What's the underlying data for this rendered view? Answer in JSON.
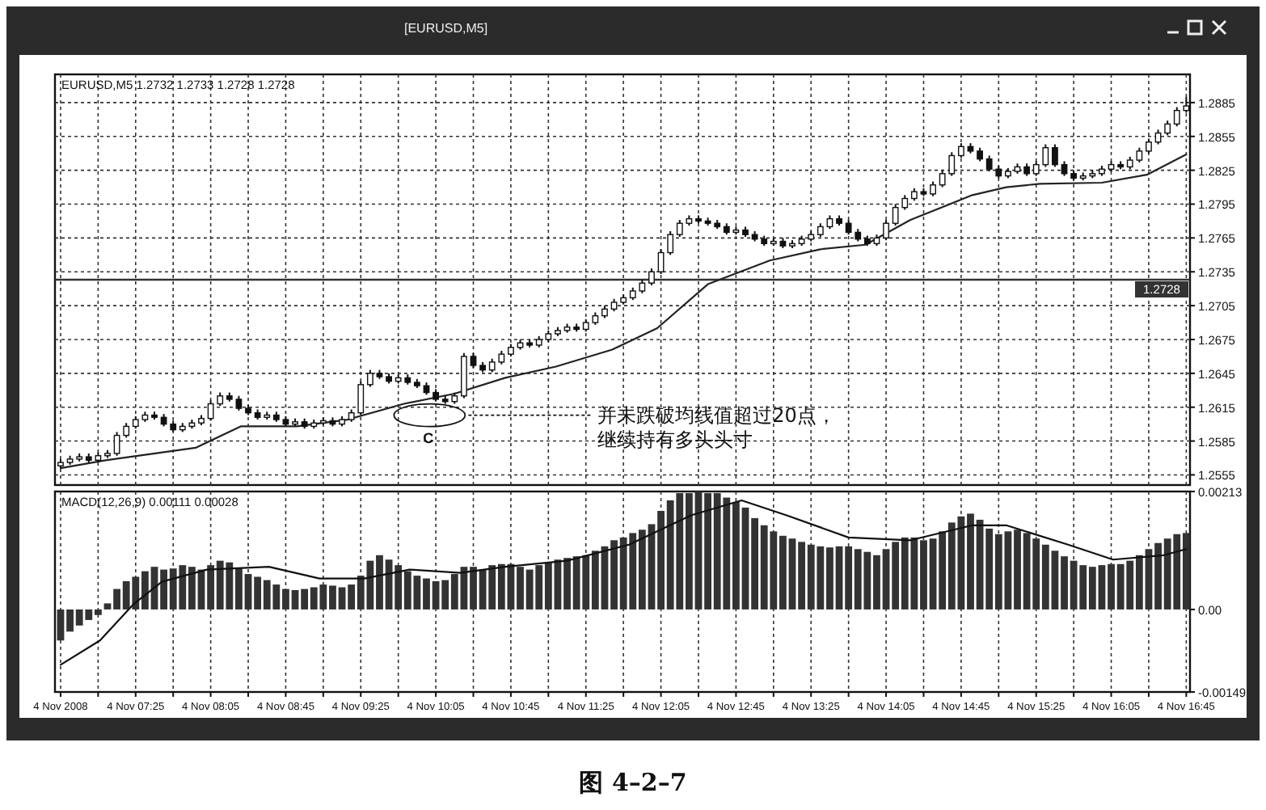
{
  "chart_data": [
    {
      "type": "candlestick",
      "title": "[EURUSD,M5]",
      "color": "#111111",
      "annotations": [
        "EURUSD,M5  1.2732 1.2733 1.2728 1.2728",
        "C",
        "并未跌破均线值超过20点，继续持有多头头寸"
      ],
      "x": [
        "2008-11-04T06:45",
        "2008-11-04T06:50",
        "2008-11-04T06:55",
        "2008-11-04T07:00",
        "2008-11-04T07:05",
        "2008-11-04T07:10",
        "2008-11-04T07:15",
        "2008-11-04T07:20",
        "2008-11-04T07:25",
        "2008-11-04T07:30",
        "2008-11-04T07:35",
        "2008-11-04T07:40",
        "2008-11-04T07:45",
        "2008-11-04T07:50",
        "2008-11-04T07:55",
        "2008-11-04T08:00",
        "2008-11-04T08:05",
        "2008-11-04T08:10",
        "2008-11-04T08:15",
        "2008-11-04T08:20",
        "2008-11-04T08:25",
        "2008-11-04T08:30",
        "2008-11-04T08:35",
        "2008-11-04T08:40",
        "2008-11-04T08:45",
        "2008-11-04T08:50",
        "2008-11-04T08:55",
        "2008-11-04T09:00",
        "2008-11-04T09:05",
        "2008-11-04T09:10",
        "2008-11-04T09:15",
        "2008-11-04T09:20",
        "2008-11-04T09:25",
        "2008-11-04T09:30",
        "2008-11-04T09:35",
        "2008-11-04T09:40",
        "2008-11-04T09:45",
        "2008-11-04T09:50",
        "2008-11-04T09:55",
        "2008-11-04T10:00",
        "2008-11-04T10:05",
        "2008-11-04T10:10",
        "2008-11-04T10:15",
        "2008-11-04T10:20",
        "2008-11-04T10:25",
        "2008-11-04T10:30",
        "2008-11-04T10:35",
        "2008-11-04T10:40",
        "2008-11-04T10:45",
        "2008-11-04T10:50",
        "2008-11-04T10:55",
        "2008-11-04T11:00",
        "2008-11-04T11:05",
        "2008-11-04T11:10",
        "2008-11-04T11:15",
        "2008-11-04T11:20",
        "2008-11-04T11:25",
        "2008-11-04T11:30",
        "2008-11-04T11:35",
        "2008-11-04T11:40",
        "2008-11-04T11:45",
        "2008-11-04T11:50",
        "2008-11-04T11:55",
        "2008-11-04T12:00",
        "2008-11-04T12:05",
        "2008-11-04T12:10",
        "2008-11-04T12:15",
        "2008-11-04T12:20",
        "2008-11-04T12:25",
        "2008-11-04T12:30",
        "2008-11-04T12:35",
        "2008-11-04T12:40",
        "2008-11-04T12:45",
        "2008-11-04T12:50",
        "2008-11-04T12:55",
        "2008-11-04T13:00",
        "2008-11-04T13:05",
        "2008-11-04T13:10",
        "2008-11-04T13:15",
        "2008-11-04T13:20",
        "2008-11-04T13:25",
        "2008-11-04T13:30",
        "2008-11-04T13:35",
        "2008-11-04T13:40",
        "2008-11-04T13:45",
        "2008-11-04T13:50",
        "2008-11-04T13:55",
        "2008-11-04T14:00",
        "2008-11-04T14:05",
        "2008-11-04T14:10",
        "2008-11-04T14:15",
        "2008-11-04T14:20",
        "2008-11-04T14:25",
        "2008-11-04T14:30",
        "2008-11-04T14:35",
        "2008-11-04T14:40",
        "2008-11-04T14:45",
        "2008-11-04T14:50",
        "2008-11-04T14:55",
        "2008-11-04T15:00",
        "2008-11-04T15:05",
        "2008-11-04T15:10",
        "2008-11-04T15:15",
        "2008-11-04T15:20",
        "2008-11-04T15:25",
        "2008-11-04T15:30",
        "2008-11-04T15:35",
        "2008-11-04T15:40",
        "2008-11-04T15:45",
        "2008-11-04T15:50",
        "2008-11-04T15:55",
        "2008-11-04T16:00",
        "2008-11-04T16:05",
        "2008-11-04T16:10",
        "2008-11-04T16:15",
        "2008-11-04T16:20",
        "2008-11-04T16:25",
        "2008-11-04T16:30",
        "2008-11-04T16:35",
        "2008-11-04T16:40",
        "2008-11-04T16:45"
      ],
      "ohlc": [
        [
          1.2563,
          1.2569,
          1.2561,
          1.2566
        ],
        [
          1.2566,
          1.2572,
          1.2564,
          1.2569
        ],
        [
          1.2569,
          1.2574,
          1.2567,
          1.2571
        ],
        [
          1.2571,
          1.2574,
          1.2566,
          1.2568
        ],
        [
          1.2568,
          1.2575,
          1.2566,
          1.2572
        ],
        [
          1.2572,
          1.2577,
          1.257,
          1.2574
        ],
        [
          1.2574,
          1.2593,
          1.2572,
          1.259
        ],
        [
          1.259,
          1.2601,
          1.2588,
          1.2598
        ],
        [
          1.2598,
          1.2607,
          1.2596,
          1.2604
        ],
        [
          1.2604,
          1.2611,
          1.2602,
          1.2608
        ],
        [
          1.2608,
          1.2611,
          1.2604,
          1.2606
        ],
        [
          1.2606,
          1.2609,
          1.2598,
          1.26
        ],
        [
          1.26,
          1.2603,
          1.2593,
          1.2595
        ],
        [
          1.2595,
          1.2601,
          1.2593,
          1.2598
        ],
        [
          1.2598,
          1.2604,
          1.2596,
          1.2601
        ],
        [
          1.2601,
          1.2608,
          1.2599,
          1.2605
        ],
        [
          1.2605,
          1.2621,
          1.2603,
          1.2618
        ],
        [
          1.2618,
          1.2628,
          1.2616,
          1.2625
        ],
        [
          1.2625,
          1.2628,
          1.262,
          1.2622
        ],
        [
          1.2622,
          1.2625,
          1.2612,
          1.2614
        ],
        [
          1.2614,
          1.2617,
          1.2608,
          1.261
        ],
        [
          1.261,
          1.2613,
          1.2604,
          1.2606
        ],
        [
          1.2606,
          1.2611,
          1.2604,
          1.2608
        ],
        [
          1.2608,
          1.2611,
          1.2602,
          1.2604
        ],
        [
          1.2604,
          1.2607,
          1.2598,
          1.26
        ],
        [
          1.26,
          1.2605,
          1.2598,
          1.2602
        ],
        [
          1.2602,
          1.2605,
          1.2596,
          1.2598
        ],
        [
          1.2598,
          1.2604,
          1.2596,
          1.2601
        ],
        [
          1.2601,
          1.2606,
          1.2599,
          1.2603
        ],
        [
          1.2603,
          1.2606,
          1.2598,
          1.26
        ],
        [
          1.26,
          1.2607,
          1.2598,
          1.2604
        ],
        [
          1.2604,
          1.2613,
          1.2602,
          1.261
        ],
        [
          1.261,
          1.2638,
          1.2608,
          1.2635
        ],
        [
          1.2635,
          1.2648,
          1.2633,
          1.2645
        ],
        [
          1.2645,
          1.2648,
          1.264,
          1.2642
        ],
        [
          1.2642,
          1.2645,
          1.2636,
          1.2638
        ],
        [
          1.2638,
          1.2644,
          1.2636,
          1.2641
        ],
        [
          1.2641,
          1.2644,
          1.2635,
          1.2637
        ],
        [
          1.2637,
          1.264,
          1.2632,
          1.2634
        ],
        [
          1.2634,
          1.2637,
          1.2626,
          1.2628
        ],
        [
          1.2628,
          1.2631,
          1.262,
          1.2622
        ],
        [
          1.2622,
          1.2625,
          1.2618,
          1.262
        ],
        [
          1.262,
          1.2628,
          1.2618,
          1.2625
        ],
        [
          1.2625,
          1.2663,
          1.2623,
          1.266
        ],
        [
          1.266,
          1.2663,
          1.265,
          1.2652
        ],
        [
          1.2652,
          1.2655,
          1.2646,
          1.2648
        ],
        [
          1.2648,
          1.2658,
          1.2646,
          1.2655
        ],
        [
          1.2655,
          1.2665,
          1.2653,
          1.2662
        ],
        [
          1.2662,
          1.2671,
          1.266,
          1.2668
        ],
        [
          1.2668,
          1.2675,
          1.2666,
          1.2672
        ],
        [
          1.2672,
          1.2675,
          1.2668,
          1.267
        ],
        [
          1.267,
          1.2678,
          1.2668,
          1.2675
        ],
        [
          1.2675,
          1.2683,
          1.2673,
          1.268
        ],
        [
          1.268,
          1.2686,
          1.2678,
          1.2683
        ],
        [
          1.2683,
          1.2689,
          1.2681,
          1.2686
        ],
        [
          1.2686,
          1.2689,
          1.2682,
          1.2684
        ],
        [
          1.2684,
          1.2693,
          1.2682,
          1.269
        ],
        [
          1.269,
          1.2699,
          1.2688,
          1.2696
        ],
        [
          1.2696,
          1.2705,
          1.2694,
          1.2702
        ],
        [
          1.2702,
          1.2711,
          1.27,
          1.2708
        ],
        [
          1.2708,
          1.2715,
          1.2706,
          1.2712
        ],
        [
          1.2712,
          1.2721,
          1.271,
          1.2718
        ],
        [
          1.2718,
          1.2728,
          1.2716,
          1.2725
        ],
        [
          1.2725,
          1.2738,
          1.2723,
          1.2735
        ],
        [
          1.2735,
          1.2755,
          1.2733,
          1.2752
        ],
        [
          1.2752,
          1.2771,
          1.275,
          1.2768
        ],
        [
          1.2768,
          1.2781,
          1.2766,
          1.2778
        ],
        [
          1.2778,
          1.2785,
          1.2776,
          1.2782
        ],
        [
          1.2782,
          1.2785,
          1.2778,
          1.278
        ],
        [
          1.278,
          1.2783,
          1.2776,
          1.2778
        ],
        [
          1.2778,
          1.2781,
          1.2773,
          1.2775
        ],
        [
          1.2775,
          1.2778,
          1.2768,
          1.277
        ],
        [
          1.277,
          1.2775,
          1.2768,
          1.2772
        ],
        [
          1.2772,
          1.2775,
          1.2766,
          1.2768
        ],
        [
          1.2768,
          1.2771,
          1.2762,
          1.2764
        ],
        [
          1.2764,
          1.2767,
          1.2758,
          1.276
        ],
        [
          1.276,
          1.2765,
          1.2758,
          1.2762
        ],
        [
          1.2762,
          1.2765,
          1.2756,
          1.2758
        ],
        [
          1.2758,
          1.2763,
          1.2756,
          1.276
        ],
        [
          1.276,
          1.2767,
          1.2758,
          1.2764
        ],
        [
          1.2764,
          1.2771,
          1.2762,
          1.2768
        ],
        [
          1.2768,
          1.2778,
          1.2766,
          1.2775
        ],
        [
          1.2775,
          1.2785,
          1.2773,
          1.2782
        ],
        [
          1.2782,
          1.2785,
          1.2776,
          1.2778
        ],
        [
          1.2778,
          1.2781,
          1.2768,
          1.277
        ],
        [
          1.277,
          1.2773,
          1.2762,
          1.2764
        ],
        [
          1.2764,
          1.2767,
          1.2758,
          1.276
        ],
        [
          1.276,
          1.2768,
          1.2758,
          1.2765
        ],
        [
          1.2765,
          1.2781,
          1.2763,
          1.2778
        ],
        [
          1.2778,
          1.2795,
          1.2776,
          1.2792
        ],
        [
          1.2792,
          1.2803,
          1.279,
          1.28
        ],
        [
          1.28,
          1.2809,
          1.2798,
          1.2806
        ],
        [
          1.2806,
          1.2809,
          1.2802,
          1.2804
        ],
        [
          1.2804,
          1.2815,
          1.2802,
          1.2812
        ],
        [
          1.2812,
          1.2825,
          1.281,
          1.2822
        ],
        [
          1.2822,
          1.2841,
          1.282,
          1.2838
        ],
        [
          1.2838,
          1.2849,
          1.2836,
          1.2846
        ],
        [
          1.2846,
          1.2849,
          1.284,
          1.2842
        ],
        [
          1.2842,
          1.2845,
          1.2833,
          1.2835
        ],
        [
          1.2835,
          1.2838,
          1.2824,
          1.2826
        ],
        [
          1.2826,
          1.2829,
          1.2818,
          1.282
        ],
        [
          1.282,
          1.2827,
          1.2818,
          1.2824
        ],
        [
          1.2824,
          1.2831,
          1.2822,
          1.2828
        ],
        [
          1.2828,
          1.2831,
          1.282,
          1.2822
        ],
        [
          1.2822,
          1.2833,
          1.282,
          1.283
        ],
        [
          1.283,
          1.2848,
          1.2828,
          1.2845
        ],
        [
          1.2845,
          1.2848,
          1.2828,
          1.283
        ],
        [
          1.283,
          1.2833,
          1.282,
          1.2822
        ],
        [
          1.2822,
          1.2825,
          1.2816,
          1.2818
        ],
        [
          1.2818,
          1.2823,
          1.2816,
          1.282
        ],
        [
          1.282,
          1.2825,
          1.2818,
          1.2822
        ],
        [
          1.2822,
          1.2829,
          1.282,
          1.2826
        ],
        [
          1.2826,
          1.2833,
          1.2824,
          1.283
        ],
        [
          1.283,
          1.2833,
          1.2826,
          1.2828
        ],
        [
          1.2828,
          1.2837,
          1.2826,
          1.2834
        ],
        [
          1.2834,
          1.2845,
          1.2832,
          1.2842
        ],
        [
          1.2842,
          1.2853,
          1.284,
          1.285
        ],
        [
          1.285,
          1.2861,
          1.2848,
          1.2858
        ],
        [
          1.2858,
          1.2869,
          1.2856,
          1.2866
        ],
        [
          1.2866,
          1.2881,
          1.2864,
          1.2878
        ],
        [
          1.2878,
          1.289,
          1.2876,
          1.2882
        ]
      ],
      "series": [
        {
          "type": "line",
          "color": "#222222",
          "x": [
            "2008-11-04T06:45",
            "2008-11-04T07:09",
            "2008-11-04T07:57",
            "2008-11-04T08:21",
            "2008-11-04T08:51",
            "2008-11-04T09:18",
            "2008-11-04T09:48",
            "2008-11-04T10:15",
            "2008-11-04T10:42",
            "2008-11-04T11:09",
            "2008-11-04T11:39",
            "2008-11-04T12:03",
            "2008-11-04T12:30",
            "2008-11-04T13:03",
            "2008-11-04T13:30",
            "2008-11-04T13:54",
            "2008-11-04T14:18",
            "2008-11-04T14:51",
            "2008-11-04T15:09",
            "2008-11-04T15:27",
            "2008-11-04T16:00",
            "2008-11-04T16:24",
            "2008-11-04T16:45"
          ],
          "values": [
            1.2561,
            1.2568,
            1.2579,
            1.2598,
            1.2598,
            1.2604,
            1.2618,
            1.2627,
            1.2641,
            1.2651,
            1.2666,
            1.2685,
            1.2724,
            1.2745,
            1.2755,
            1.2759,
            1.2781,
            1.2803,
            1.281,
            1.2813,
            1.2814,
            1.2821,
            1.2839
          ]
        }
      ],
      "xlim": [
        "2008-11-04T06:42",
        "2008-11-04T16:47"
      ],
      "ylim": [
        1.2546,
        1.291
      ],
      "xticks": [
        {
          "value": "2008-11-04T06:45",
          "label": null
        },
        {
          "value": "2008-11-04T07:05",
          "label": null
        },
        {
          "value": "2008-11-04T07:25",
          "label": null
        },
        {
          "value": "2008-11-04T07:45",
          "label": null
        },
        {
          "value": "2008-11-04T08:05",
          "label": null
        },
        {
          "value": "2008-11-04T08:25",
          "label": null
        },
        {
          "value": "2008-11-04T08:45",
          "label": null
        },
        {
          "value": "2008-11-04T09:05",
          "label": null
        },
        {
          "value": "2008-11-04T09:25",
          "label": null
        },
        {
          "value": "2008-11-04T09:45",
          "label": null
        },
        {
          "value": "2008-11-04T10:05",
          "label": null
        },
        {
          "value": "2008-11-04T10:25",
          "label": null
        },
        {
          "value": "2008-11-04T10:45",
          "label": null
        },
        {
          "value": "2008-11-04T11:05",
          "label": null
        },
        {
          "value": "2008-11-04T11:25",
          "label": null
        },
        {
          "value": "2008-11-04T11:45",
          "label": null
        },
        {
          "value": "2008-11-04T12:05",
          "label": null
        },
        {
          "value": "2008-11-04T12:25",
          "label": null
        },
        {
          "value": "2008-11-04T12:45",
          "label": null
        },
        {
          "value": "2008-11-04T13:05",
          "label": null
        },
        {
          "value": "2008-11-04T13:25",
          "label": null
        },
        {
          "value": "2008-11-04T13:45",
          "label": null
        },
        {
          "value": "2008-11-04T14:05",
          "label": null
        },
        {
          "value": "2008-11-04T14:25",
          "label": null
        },
        {
          "value": "2008-11-04T14:45",
          "label": null
        },
        {
          "value": "2008-11-04T15:05",
          "label": null
        },
        {
          "value": "2008-11-04T15:25",
          "label": null
        },
        {
          "value": "2008-11-04T15:45",
          "label": null
        },
        {
          "value": "2008-11-04T16:05",
          "label": null
        },
        {
          "value": "2008-11-04T16:25",
          "label": null
        },
        {
          "value": "2008-11-04T16:45",
          "label": null
        }
      ],
      "yticks": [
        1.2555,
        1.2585,
        1.2615,
        1.2645,
        1.2675,
        1.2705,
        1.2735,
        1.2765,
        1.2795,
        1.2825,
        1.2855,
        1.2885
      ],
      "grid": true,
      "tick_labels": "y",
      "ref_lines": [
        {
          "axis": "y",
          "value": 1.2728,
          "label": "1.2728",
          "color": "#333333"
        }
      ]
    },
    {
      "type": "bar",
      "annotations": [
        "MACD(12,26,9) 0.00111 0.00028",
        "图 4–2–7"
      ],
      "x": [
        "2008-11-04T06:45",
        "2008-11-04T06:50",
        "2008-11-04T06:55",
        "2008-11-04T07:00",
        "2008-11-04T07:05",
        "2008-11-04T07:10",
        "2008-11-04T07:15",
        "2008-11-04T07:20",
        "2008-11-04T07:25",
        "2008-11-04T07:30",
        "2008-11-04T07:35",
        "2008-11-04T07:40",
        "2008-11-04T07:45",
        "2008-11-04T07:50",
        "2008-11-04T07:55",
        "2008-11-04T08:00",
        "2008-11-04T08:05",
        "2008-11-04T08:10",
        "2008-11-04T08:15",
        "2008-11-04T08:20",
        "2008-11-04T08:25",
        "2008-11-04T08:30",
        "2008-11-04T08:35",
        "2008-11-04T08:40",
        "2008-11-04T08:45",
        "2008-11-04T08:50",
        "2008-11-04T08:55",
        "2008-11-04T09:00",
        "2008-11-04T09:05",
        "2008-11-04T09:10",
        "2008-11-04T09:15",
        "2008-11-04T09:20",
        "2008-11-04T09:25",
        "2008-11-04T09:30",
        "2008-11-04T09:35",
        "2008-11-04T09:40",
        "2008-11-04T09:45",
        "2008-11-04T09:50",
        "2008-11-04T09:55",
        "2008-11-04T10:00",
        "2008-11-04T10:05",
        "2008-11-04T10:10",
        "2008-11-04T10:15",
        "2008-11-04T10:20",
        "2008-11-04T10:25",
        "2008-11-04T10:30",
        "2008-11-04T10:35",
        "2008-11-04T10:40",
        "2008-11-04T10:45",
        "2008-11-04T10:50",
        "2008-11-04T10:55",
        "2008-11-04T11:00",
        "2008-11-04T11:05",
        "2008-11-04T11:10",
        "2008-11-04T11:15",
        "2008-11-04T11:20",
        "2008-11-04T11:25",
        "2008-11-04T11:30",
        "2008-11-04T11:35",
        "2008-11-04T11:40",
        "2008-11-04T11:45",
        "2008-11-04T11:50",
        "2008-11-04T11:55",
        "2008-11-04T12:00",
        "2008-11-04T12:05",
        "2008-11-04T12:10",
        "2008-11-04T12:15",
        "2008-11-04T12:20",
        "2008-11-04T12:25",
        "2008-11-04T12:30",
        "2008-11-04T12:35",
        "2008-11-04T12:40",
        "2008-11-04T12:45",
        "2008-11-04T12:50",
        "2008-11-04T12:55",
        "2008-11-04T13:00",
        "2008-11-04T13:05",
        "2008-11-04T13:10",
        "2008-11-04T13:15",
        "2008-11-04T13:20",
        "2008-11-04T13:25",
        "2008-11-04T13:30",
        "2008-11-04T13:35",
        "2008-11-04T13:40",
        "2008-11-04T13:45",
        "2008-11-04T13:50",
        "2008-11-04T13:55",
        "2008-11-04T14:00",
        "2008-11-04T14:05",
        "2008-11-04T14:10",
        "2008-11-04T14:15",
        "2008-11-04T14:20",
        "2008-11-04T14:25",
        "2008-11-04T14:30",
        "2008-11-04T14:35",
        "2008-11-04T14:40",
        "2008-11-04T14:45",
        "2008-11-04T14:50",
        "2008-11-04T14:55",
        "2008-11-04T15:00",
        "2008-11-04T15:05",
        "2008-11-04T15:10",
        "2008-11-04T15:15",
        "2008-11-04T15:20",
        "2008-11-04T15:25",
        "2008-11-04T15:30",
        "2008-11-04T15:35",
        "2008-11-04T15:40",
        "2008-11-04T15:45",
        "2008-11-04T15:50",
        "2008-11-04T15:55",
        "2008-11-04T16:00",
        "2008-11-04T16:05",
        "2008-11-04T16:10",
        "2008-11-04T16:15",
        "2008-11-04T16:20",
        "2008-11-04T16:25",
        "2008-11-04T16:30",
        "2008-11-04T16:35",
        "2008-11-04T16:40",
        "2008-11-04T16:45"
      ],
      "series": [
        {
          "type": "bar",
          "color": "#333333",
          "values": [
            -0.00056,
            -0.0004,
            -0.00029,
            -0.00019,
            -0.0001,
            0.00011,
            0.00037,
            0.00051,
            0.00059,
            0.00069,
            0.00077,
            0.00072,
            0.00074,
            0.0008,
            0.00077,
            0.00072,
            0.0008,
            0.00088,
            0.00085,
            0.00074,
            0.00064,
            0.00059,
            0.00053,
            0.00045,
            0.00037,
            0.00035,
            0.00037,
            0.0004,
            0.00045,
            0.00043,
            0.0004,
            0.00045,
            0.00061,
            0.00088,
            0.00098,
            0.0009,
            0.0008,
            0.00069,
            0.00061,
            0.00056,
            0.00051,
            0.00053,
            0.00064,
            0.00077,
            0.00077,
            0.00072,
            0.0008,
            0.00082,
            0.00082,
            0.00077,
            0.00072,
            0.0008,
            0.00085,
            0.0009,
            0.00093,
            0.00096,
            0.00098,
            0.00106,
            0.00114,
            0.00125,
            0.0013,
            0.00138,
            0.00144,
            0.00154,
            0.00178,
            0.00197,
            0.0021,
            0.0021,
            0.00213,
            0.0021,
            0.0021,
            0.00202,
            0.00194,
            0.00184,
            0.00165,
            0.00152,
            0.00141,
            0.00133,
            0.00128,
            0.00122,
            0.00117,
            0.00114,
            0.00112,
            0.00114,
            0.00114,
            0.00109,
            0.00104,
            0.00098,
            0.00109,
            0.00122,
            0.0013,
            0.0013,
            0.00125,
            0.00128,
            0.00141,
            0.00157,
            0.00168,
            0.00173,
            0.00162,
            0.00146,
            0.00136,
            0.00141,
            0.00144,
            0.00138,
            0.00128,
            0.00117,
            0.00106,
            0.00096,
            0.00088,
            0.0008,
            0.00077,
            0.0008,
            0.00082,
            0.00082,
            0.00088,
            0.00098,
            0.00109,
            0.0012,
            0.00128,
            0.00136,
            0.00138
          ]
        },
        {
          "type": "line",
          "color": "#111111",
          "x": [
            "2008-11-04T06:45",
            "2008-11-04T07:06",
            "2008-11-04T07:24",
            "2008-11-04T07:39",
            "2008-11-04T08:03",
            "2008-11-04T08:36",
            "2008-11-04T09:03",
            "2008-11-04T09:27",
            "2008-11-04T09:51",
            "2008-11-04T10:18",
            "2008-11-04T10:42",
            "2008-11-04T11:15",
            "2008-11-04T11:48",
            "2008-11-04T12:21",
            "2008-11-04T12:48",
            "2008-11-04T13:12",
            "2008-11-04T13:45",
            "2008-11-04T14:18",
            "2008-11-04T14:51",
            "2008-11-04T15:09",
            "2008-11-04T15:42",
            "2008-11-04T16:06",
            "2008-11-04T16:33",
            "2008-11-04T16:45"
          ],
          "values": [
            -0.001,
            -0.00056,
            0.0001,
            0.0005,
            0.00072,
            0.00077,
            0.00056,
            0.00056,
            0.00072,
            0.00066,
            0.00077,
            0.00088,
            0.00117,
            0.0017,
            0.00197,
            0.0017,
            0.0013,
            0.00125,
            0.00152,
            0.00152,
            0.00117,
            0.0009,
            0.00098,
            0.00109
          ]
        }
      ],
      "xlim": [
        "2008-11-04T06:42",
        "2008-11-04T16:47"
      ],
      "ylim": [
        -0.00149,
        0.00213
      ],
      "xticks": [
        {
          "value": "2008-11-04T06:45",
          "label": "4 Nov 2008"
        },
        {
          "value": "2008-11-04T07:05",
          "label": null
        },
        {
          "value": "2008-11-04T07:25",
          "label": "4 Nov 07:25"
        },
        {
          "value": "2008-11-04T07:45",
          "label": null
        },
        {
          "value": "2008-11-04T08:05",
          "label": "4 Nov 08:05"
        },
        {
          "value": "2008-11-04T08:25",
          "label": null
        },
        {
          "value": "2008-11-04T08:45",
          "label": "4 Nov 08:45"
        },
        {
          "value": "2008-11-04T09:05",
          "label": null
        },
        {
          "value": "2008-11-04T09:25",
          "label": "4 Nov 09:25"
        },
        {
          "value": "2008-11-04T09:45",
          "label": null
        },
        {
          "value": "2008-11-04T10:05",
          "label": "4 Nov 10:05"
        },
        {
          "value": "2008-11-04T10:25",
          "label": null
        },
        {
          "value": "2008-11-04T10:45",
          "label": "4 Nov 10:45"
        },
        {
          "value": "2008-11-04T11:05",
          "label": null
        },
        {
          "value": "2008-11-04T11:25",
          "label": "4 Nov 11:25"
        },
        {
          "value": "2008-11-04T11:45",
          "label": null
        },
        {
          "value": "2008-11-04T12:05",
          "label": "4 Nov 12:05"
        },
        {
          "value": "2008-11-04T12:25",
          "label": null
        },
        {
          "value": "2008-11-04T12:45",
          "label": "4 Nov 12:45"
        },
        {
          "value": "2008-11-04T13:05",
          "label": null
        },
        {
          "value": "2008-11-04T13:25",
          "label": "4 Nov 13:25"
        },
        {
          "value": "2008-11-04T13:45",
          "label": null
        },
        {
          "value": "2008-11-04T14:05",
          "label": "4 Nov 14:05"
        },
        {
          "value": "2008-11-04T14:25",
          "label": null
        },
        {
          "value": "2008-11-04T14:45",
          "label": "4 Nov 14:45"
        },
        {
          "value": "2008-11-04T15:05",
          "label": null
        },
        {
          "value": "2008-11-04T15:25",
          "label": "4 Nov 15:25"
        },
        {
          "value": "2008-11-04T15:45",
          "label": null
        },
        {
          "value": "2008-11-04T16:05",
          "label": "4 Nov 16:05"
        },
        {
          "value": "2008-11-04T16:25",
          "label": null
        },
        {
          "value": "2008-11-04T16:45",
          "label": "4 Nov 16:45"
        }
      ],
      "yticks": [
        0.00213,
        {
          "value": 0,
          "label": "0.00"
        },
        -0.00149
      ],
      "grid": "x"
    }
  ]
}
